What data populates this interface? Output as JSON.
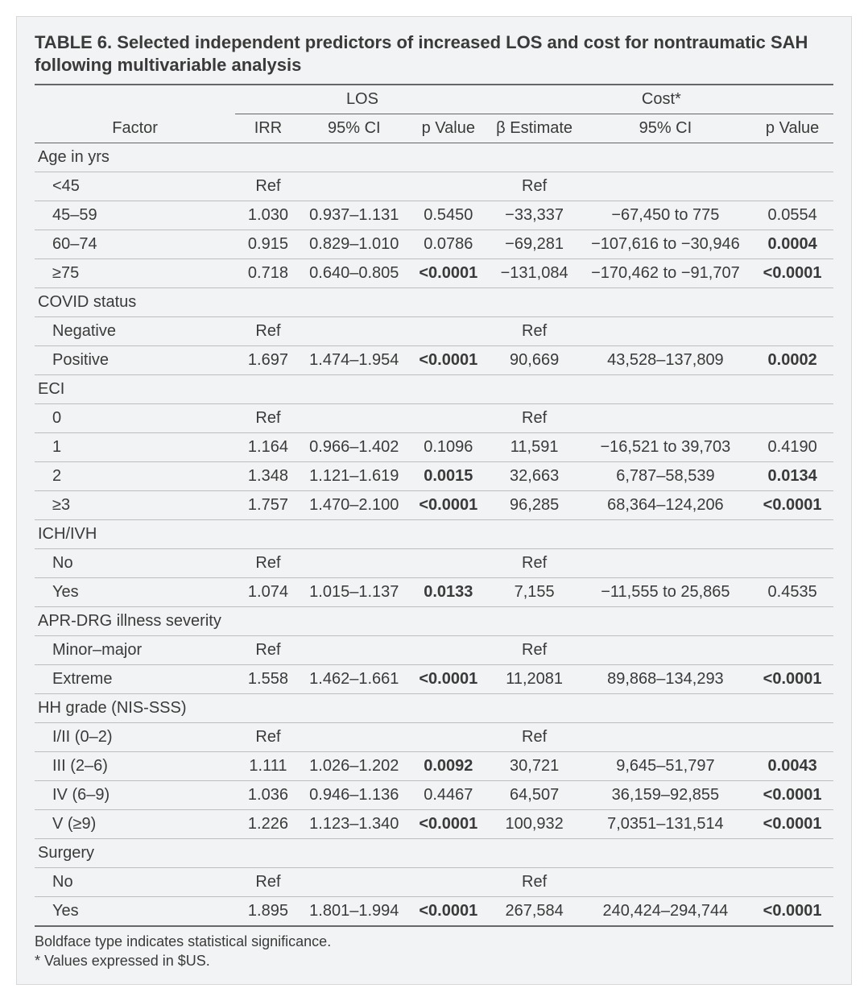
{
  "title": "TABLE 6. Selected independent predictors of increased LOS and cost for nontraumatic SAH following multivariable analysis",
  "columns": {
    "factor": "Factor",
    "los_group": "LOS",
    "cost_group": "Cost*",
    "irr": "IRR",
    "ci1": "95% CI",
    "p1": "p Value",
    "beta": "β Estimate",
    "ci2": "95% CI",
    "p2": "p Value"
  },
  "sections": [
    {
      "label": "Age in yrs",
      "rows": [
        {
          "factor": "<45",
          "irr": "Ref",
          "ci1": "",
          "p1": "",
          "p1_bold": false,
          "beta": "Ref",
          "ci2": "",
          "p2": "",
          "p2_bold": false
        },
        {
          "factor": "45–59",
          "irr": "1.030",
          "ci1": "0.937–1.131",
          "p1": "0.5450",
          "p1_bold": false,
          "beta": "−33,337",
          "ci2": "−67,450 to 775",
          "p2": "0.0554",
          "p2_bold": false
        },
        {
          "factor": "60–74",
          "irr": "0.915",
          "ci1": "0.829–1.010",
          "p1": "0.0786",
          "p1_bold": false,
          "beta": "−69,281",
          "ci2": "−107,616 to −30,946",
          "p2": "0.0004",
          "p2_bold": true
        },
        {
          "factor": "≥75",
          "irr": "0.718",
          "ci1": "0.640–0.805",
          "p1": "<0.0001",
          "p1_bold": true,
          "beta": "−131,084",
          "ci2": "−170,462 to −91,707",
          "p2": "<0.0001",
          "p2_bold": true
        }
      ]
    },
    {
      "label": "COVID status",
      "rows": [
        {
          "factor": "Negative",
          "irr": "Ref",
          "ci1": "",
          "p1": "",
          "p1_bold": false,
          "beta": "Ref",
          "ci2": "",
          "p2": "",
          "p2_bold": false
        },
        {
          "factor": "Positive",
          "irr": "1.697",
          "ci1": "1.474–1.954",
          "p1": "<0.0001",
          "p1_bold": true,
          "beta": "90,669",
          "ci2": "43,528–137,809",
          "p2": "0.0002",
          "p2_bold": true
        }
      ]
    },
    {
      "label": "ECI",
      "rows": [
        {
          "factor": "0",
          "irr": "Ref",
          "ci1": "",
          "p1": "",
          "p1_bold": false,
          "beta": "Ref",
          "ci2": "",
          "p2": "",
          "p2_bold": false
        },
        {
          "factor": "1",
          "irr": "1.164",
          "ci1": "0.966–1.402",
          "p1": "0.1096",
          "p1_bold": false,
          "beta": "11,591",
          "ci2": "−16,521 to 39,703",
          "p2": "0.4190",
          "p2_bold": false
        },
        {
          "factor": "2",
          "irr": "1.348",
          "ci1": "1.121–1.619",
          "p1": "0.0015",
          "p1_bold": true,
          "beta": "32,663",
          "ci2": "6,787–58,539",
          "p2": "0.0134",
          "p2_bold": true
        },
        {
          "factor": "≥3",
          "irr": "1.757",
          "ci1": "1.470–2.100",
          "p1": "<0.0001",
          "p1_bold": true,
          "beta": "96,285",
          "ci2": "68,364–124,206",
          "p2": "<0.0001",
          "p2_bold": true
        }
      ]
    },
    {
      "label": "ICH/IVH",
      "rows": [
        {
          "factor": "No",
          "irr": "Ref",
          "ci1": "",
          "p1": "",
          "p1_bold": false,
          "beta": "Ref",
          "ci2": "",
          "p2": "",
          "p2_bold": false
        },
        {
          "factor": "Yes",
          "irr": "1.074",
          "ci1": "1.015–1.137",
          "p1": "0.0133",
          "p1_bold": true,
          "beta": "7,155",
          "ci2": "−11,555 to 25,865",
          "p2": "0.4535",
          "p2_bold": false
        }
      ]
    },
    {
      "label": "APR-DRG illness severity",
      "rows": [
        {
          "factor": "Minor–major",
          "irr": "Ref",
          "ci1": "",
          "p1": "",
          "p1_bold": false,
          "beta": "Ref",
          "ci2": "",
          "p2": "",
          "p2_bold": false
        },
        {
          "factor": "Extreme",
          "irr": "1.558",
          "ci1": "1.462–1.661",
          "p1": "<0.0001",
          "p1_bold": true,
          "beta": "11,2081",
          "ci2": "89,868–134,293",
          "p2": "<0.0001",
          "p2_bold": true
        }
      ]
    },
    {
      "label": "HH grade (NIS-SSS)",
      "rows": [
        {
          "factor": "I/II (0–2)",
          "irr": "Ref",
          "ci1": "",
          "p1": "",
          "p1_bold": false,
          "beta": "Ref",
          "ci2": "",
          "p2": "",
          "p2_bold": false
        },
        {
          "factor": "III (2–6)",
          "irr": "1.111",
          "ci1": "1.026–1.202",
          "p1": "0.0092",
          "p1_bold": true,
          "beta": "30,721",
          "ci2": "9,645–51,797",
          "p2": "0.0043",
          "p2_bold": true
        },
        {
          "factor": "IV (6–9)",
          "irr": "1.036",
          "ci1": "0.946–1.136",
          "p1": "0.4467",
          "p1_bold": false,
          "beta": "64,507",
          "ci2": "36,159–92,855",
          "p2": "<0.0001",
          "p2_bold": true
        },
        {
          "factor": "V (≥9)",
          "irr": "1.226",
          "ci1": "1.123–1.340",
          "p1": "<0.0001",
          "p1_bold": true,
          "beta": "100,932",
          "ci2": "7,0351–131,514",
          "p2": "<0.0001",
          "p2_bold": true
        }
      ]
    },
    {
      "label": "Surgery",
      "rows": [
        {
          "factor": "No",
          "irr": "Ref",
          "ci1": "",
          "p1": "",
          "p1_bold": false,
          "beta": "Ref",
          "ci2": "",
          "p2": "",
          "p2_bold": false
        },
        {
          "factor": "Yes",
          "irr": "1.895",
          "ci1": "1.801–1.994",
          "p1": "<0.0001",
          "p1_bold": true,
          "beta": "267,584",
          "ci2": "240,424–294,744",
          "p2": "<0.0001",
          "p2_bold": true
        }
      ]
    }
  ],
  "footnotes": {
    "a": "Boldface type indicates statistical significance.",
    "b": "* Values expressed in $US."
  },
  "style": {
    "background": "#f2f3f4",
    "text_color": "#3a3a3a",
    "border_color": "#bdbdbd",
    "heavy_border": "#666666",
    "title_fontsize": 22,
    "body_fontsize": 20,
    "footnote_fontsize": 18
  }
}
